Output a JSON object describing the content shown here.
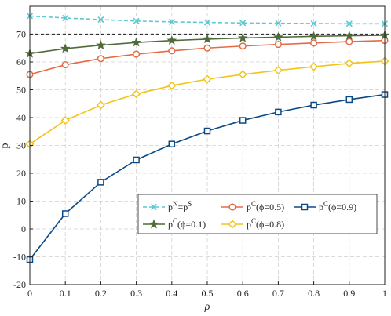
{
  "chart_data": {
    "type": "line",
    "xlabel": "ρ",
    "ylabel": "p",
    "xlim": [
      0,
      1
    ],
    "ylim": [
      -20,
      80
    ],
    "xticks": [
      0,
      0.1,
      0.2,
      0.3,
      0.4,
      0.5,
      0.6,
      0.7,
      0.8,
      0.9,
      1
    ],
    "xtick_labels": [
      "0",
      "0.1",
      "0.2",
      "0.3",
      "0.4",
      "0.5",
      "0.6",
      "0.7",
      "0.8",
      "0.9",
      "1"
    ],
    "yticks": [
      -20,
      -10,
      0,
      10,
      20,
      30,
      40,
      50,
      60,
      70
    ],
    "ytick_labels": [
      "-20",
      "-10",
      "0",
      "10",
      "20",
      "30",
      "40",
      "50",
      "60",
      "70"
    ],
    "grid": true,
    "legend_position": "lower-right",
    "x": [
      0,
      0.1,
      0.2,
      0.3,
      0.4,
      0.5,
      0.6,
      0.7,
      0.8,
      0.9,
      1
    ],
    "reference_line": {
      "y": 70,
      "style": "dashed",
      "color": "#333333"
    },
    "series": [
      {
        "legend": {
          "base": "p",
          "sup1": "N",
          "mid": "=p",
          "sup2": "S",
          "tail": ""
        },
        "color": "#5bc8d2",
        "marker": "x",
        "linestyle": "dashed",
        "values": [
          76.5,
          75.8,
          75.2,
          74.7,
          74.4,
          74.2,
          74.0,
          73.9,
          73.8,
          73.7,
          73.7
        ]
      },
      {
        "legend": {
          "base": "p",
          "sup1": "C",
          "mid": "",
          "sup2": "",
          "tail": "(ϕ=0.5)"
        },
        "color": "#e56a45",
        "marker": "circle",
        "linestyle": "solid",
        "values": [
          55.5,
          59.0,
          61.2,
          62.8,
          64.0,
          65.0,
          65.7,
          66.3,
          66.8,
          67.3,
          67.7
        ]
      },
      {
        "legend": {
          "base": "p",
          "sup1": "C",
          "mid": "",
          "sup2": "",
          "tail": "(ϕ=0.9)"
        },
        "color": "#0c4a86",
        "marker": "square",
        "linestyle": "solid",
        "values": [
          -11.0,
          5.5,
          16.8,
          24.8,
          30.5,
          35.2,
          39.0,
          42.0,
          44.5,
          46.5,
          48.3
        ]
      },
      {
        "legend": {
          "base": "p",
          "sup1": "C",
          "mid": "",
          "sup2": "",
          "tail": "(ϕ=0.1)"
        },
        "color": "#4f6b3a",
        "marker": "star",
        "linestyle": "solid",
        "values": [
          63.0,
          64.8,
          66.0,
          67.0,
          67.7,
          68.2,
          68.6,
          68.9,
          69.2,
          69.4,
          69.6
        ]
      },
      {
        "legend": {
          "base": "p",
          "sup1": "C",
          "mid": "",
          "sup2": "",
          "tail": "(ϕ=0.8)"
        },
        "color": "#f2c41a",
        "marker": "diamond",
        "linestyle": "solid",
        "values": [
          30.5,
          39.0,
          44.5,
          48.5,
          51.5,
          53.8,
          55.5,
          57.0,
          58.3,
          59.5,
          60.3
        ]
      }
    ]
  }
}
